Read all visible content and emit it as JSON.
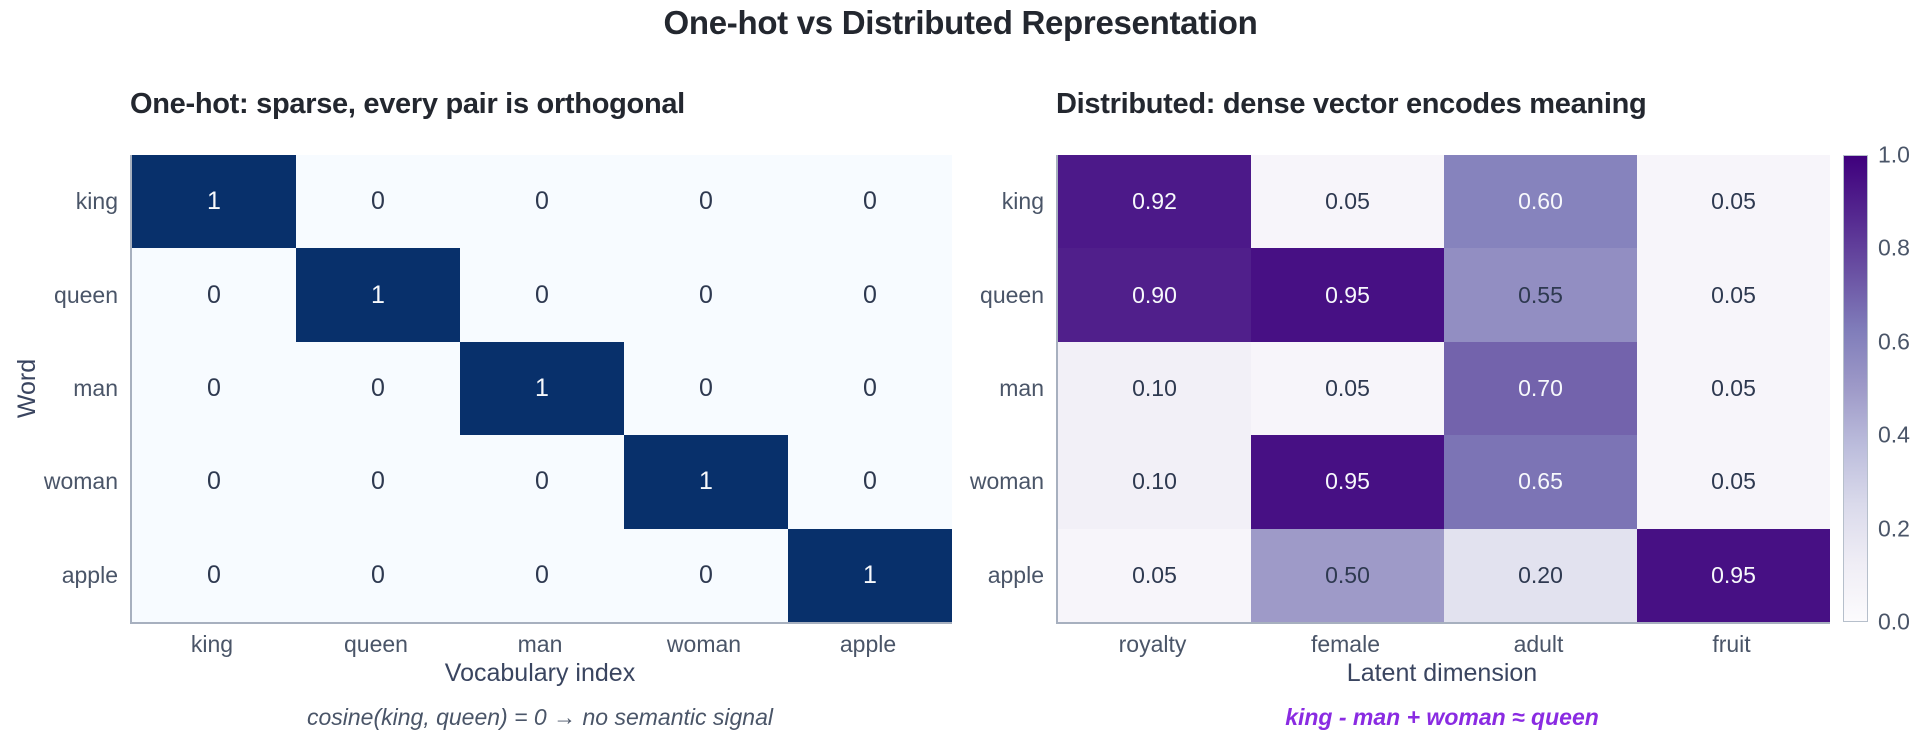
{
  "page": {
    "title": "One-hot vs Distributed Representation"
  },
  "chart_data": [
    {
      "type": "heatmap",
      "title": "One-hot: sparse, every pair is orthogonal",
      "xlabel": "Vocabulary index",
      "ylabel": "Word",
      "x_categories": [
        "king",
        "queen",
        "man",
        "woman",
        "apple"
      ],
      "y_categories": [
        "king",
        "queen",
        "man",
        "woman",
        "apple"
      ],
      "values": [
        [
          1,
          0,
          0,
          0,
          0
        ],
        [
          0,
          1,
          0,
          0,
          0
        ],
        [
          0,
          0,
          1,
          0,
          0
        ],
        [
          0,
          0,
          0,
          1,
          0
        ],
        [
          0,
          0,
          0,
          0,
          1
        ]
      ],
      "value_format": "0",
      "colormap": "Blues",
      "vmin": 0,
      "vmax": 1,
      "grid": false,
      "annotation": {
        "text": "cosine(king, queen) = 0  →  no semantic signal",
        "color": "#4a5568"
      }
    },
    {
      "type": "heatmap",
      "title": "Distributed: dense vector encodes meaning",
      "xlabel": "Latent dimension",
      "ylabel": "",
      "x_categories": [
        "royalty",
        "female",
        "adult",
        "fruit"
      ],
      "y_categories": [
        "king",
        "queen",
        "man",
        "woman",
        "apple"
      ],
      "values": [
        [
          0.92,
          0.05,
          0.6,
          0.05
        ],
        [
          0.9,
          0.95,
          0.55,
          0.05
        ],
        [
          0.1,
          0.05,
          0.7,
          0.05
        ],
        [
          0.1,
          0.95,
          0.65,
          0.05
        ],
        [
          0.05,
          0.5,
          0.2,
          0.95
        ]
      ],
      "value_format": "2",
      "colormap": "Purples",
      "vmin": 0,
      "vmax": 1,
      "grid": false,
      "annotation": {
        "text": "king - man + woman ≈ queen",
        "color": "#8a2be2"
      },
      "colorbar": {
        "ticks": [
          "1.0",
          "0.8",
          "0.6",
          "0.4",
          "0.2",
          "0.0"
        ],
        "position": "right"
      }
    }
  ],
  "colormaps": {
    "Blues": [
      "#f7fbff",
      "#deebf7",
      "#c6dbef",
      "#9ecae1",
      "#6baed6",
      "#4292c6",
      "#2171b5",
      "#08519c",
      "#08306b"
    ],
    "Purples": [
      "#fcfbfd",
      "#efedf5",
      "#dadaeb",
      "#bcbddc",
      "#9e9ac8",
      "#807dba",
      "#6a51a3",
      "#54278f",
      "#3f007d"
    ]
  },
  "colors": {
    "background": "#ffffff",
    "title": "#23272f",
    "tick": "#4a5568",
    "axis_label": "#3a4560",
    "spine": "#a7b0bf",
    "cell_text_light": "#f7f9fc",
    "cell_text_dark": "#2e3950",
    "colorbar_border": "#b6bfcb"
  }
}
